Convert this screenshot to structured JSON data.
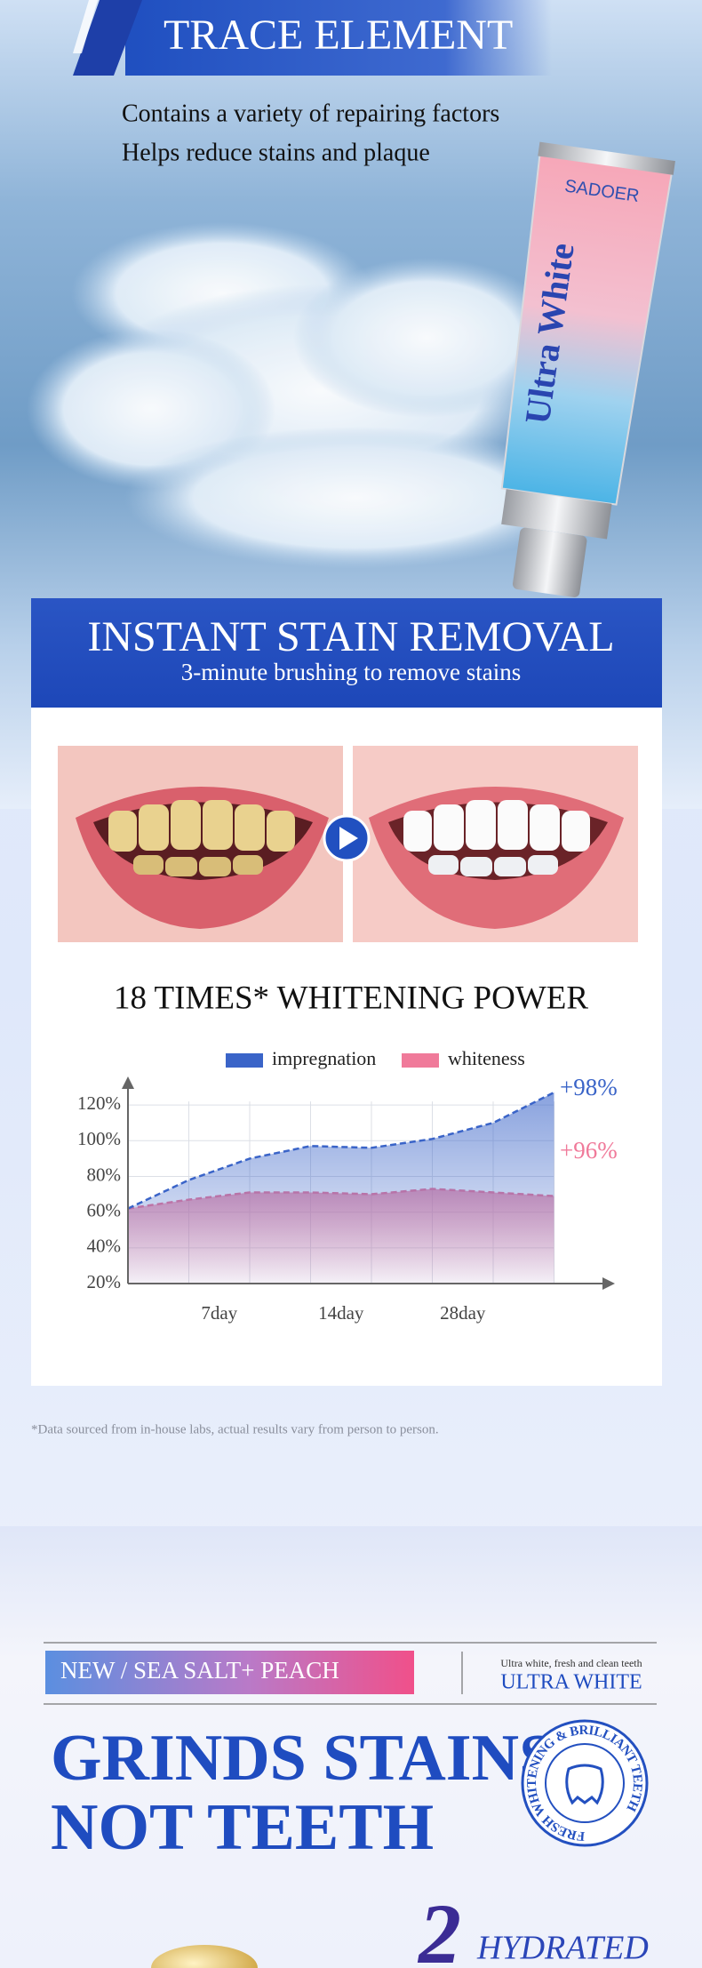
{
  "header": {
    "title": "TRACE ELEMENT",
    "lines": [
      "Contains a variety of repairing factors",
      "Helps reduce stains and plaque"
    ]
  },
  "product": {
    "brand": "SADOER",
    "name": "Ultra White"
  },
  "stain_section": {
    "title": "INSTANT STAIN REMOVAL",
    "subtitle": "3-minute brushing to remove stains"
  },
  "chart_data": {
    "type": "line",
    "title": "18 TIMES* WHITENING POWER",
    "x": [
      0,
      1,
      2,
      3,
      4,
      5,
      6,
      7
    ],
    "series": [
      {
        "name": "impregnation",
        "color": "#3a64c8",
        "values": [
          62,
          78,
          90,
          97,
          96,
          101,
          110,
          127
        ]
      },
      {
        "name": "whiteness",
        "color": "#f07a9a",
        "values": [
          62,
          67,
          71,
          71,
          70,
          73,
          71,
          69
        ]
      }
    ],
    "xlim": [
      0,
      8
    ],
    "xticks": [
      {
        "value": 1.5,
        "label": "7day"
      },
      {
        "value": 3.5,
        "label": "14day"
      },
      {
        "value": 5.5,
        "label": "28day"
      }
    ],
    "ylim": [
      20,
      130
    ],
    "yticks": [
      {
        "value": 20,
        "label": "20%"
      },
      {
        "value": 40,
        "label": "40%"
      },
      {
        "value": 60,
        "label": "60%"
      },
      {
        "value": 80,
        "label": "80%"
      },
      {
        "value": 100,
        "label": "100%"
      },
      {
        "value": 120,
        "label": "120%"
      }
    ],
    "grid": true,
    "annotations": [
      {
        "text": "+98%",
        "color": "#3a64c8"
      },
      {
        "text": "+96%",
        "color": "#f07a9a"
      }
    ]
  },
  "footnote": "*Data sourced from in-house labs, actual results vary from person to person.",
  "feature": {
    "tag": "NEW / SEA SALT+ PEACH",
    "tagline": "Ultra white, fresh and clean teeth",
    "brand_line": "ULTRA WHITE",
    "headline": [
      "GRINDS STAINS",
      "NOT TEETH"
    ],
    "badge": "FRESH WHITENING & BRILLIANT TEETH"
  },
  "next": {
    "number": "2",
    "title": "HYDRATED"
  }
}
